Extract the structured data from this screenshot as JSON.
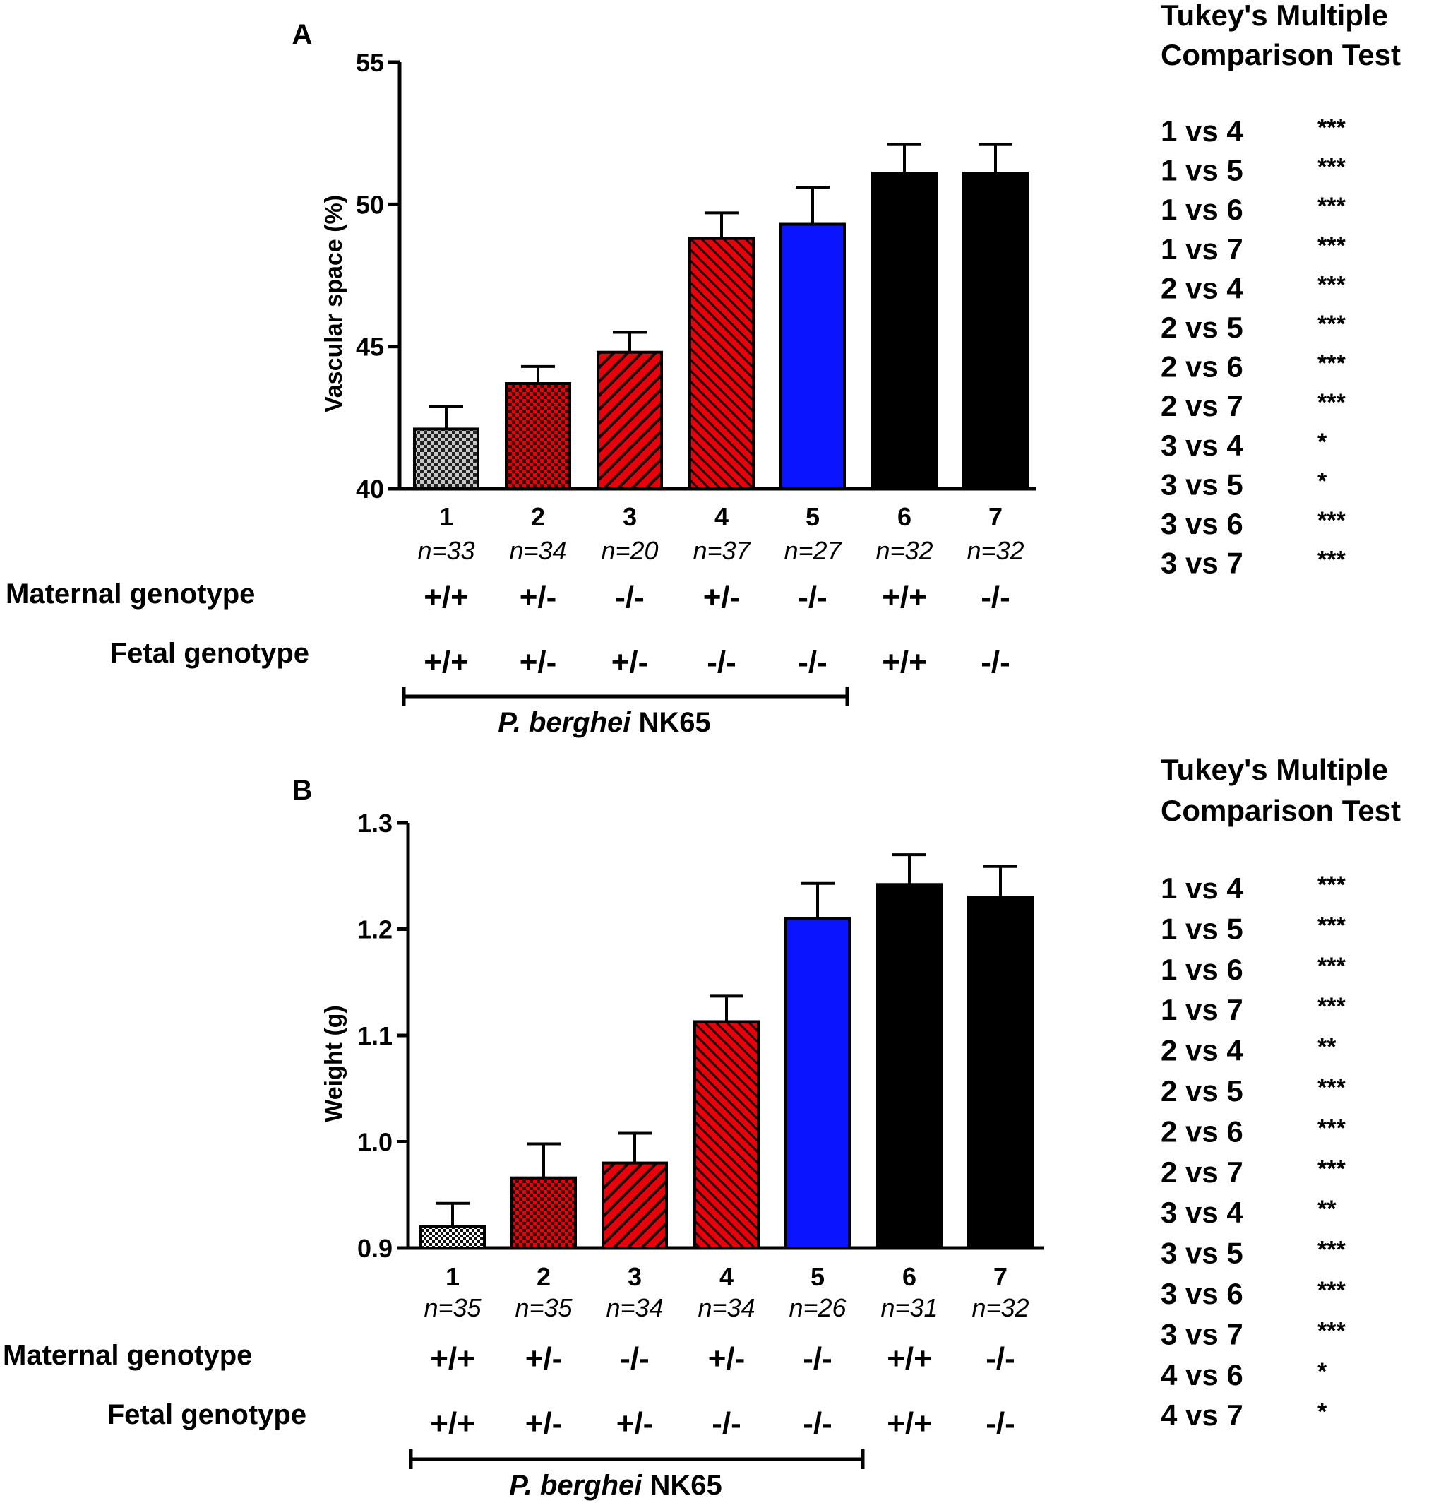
{
  "chart_data": [
    {
      "type": "bar",
      "panel_label": "A",
      "title": "",
      "xlabel": "",
      "ylabel": "Vascular space (%)",
      "ylim": [
        40,
        55
      ],
      "yticks": [
        "40",
        "45",
        "50",
        "55"
      ],
      "categories": [
        "1",
        "2",
        "3",
        "4",
        "5",
        "6",
        "7"
      ],
      "n_labels": [
        "n=33",
        "n=34",
        "n=20",
        "n=37",
        "n=27",
        "n=32",
        "n=32"
      ],
      "values": [
        42.1,
        43.7,
        44.8,
        48.8,
        49.3,
        51.1,
        51.1
      ],
      "errors": [
        0.8,
        0.6,
        0.7,
        0.9,
        1.3,
        1.0,
        1.0
      ],
      "patterns": [
        "checker-gray",
        "checker-red",
        "hatch-red",
        "hatch-red-dense",
        "solid-blue",
        "solid-black",
        "solid-black"
      ],
      "maternal_label": "Maternal genotype",
      "maternal": [
        "+/+",
        "+/-",
        "-/-",
        "+/-",
        "-/-",
        "+/+",
        "-/-"
      ],
      "fetal_label": "Fetal genotype",
      "fetal": [
        "+/+",
        "+/-",
        "+/-",
        "-/-",
        "-/-",
        "+/+",
        "-/-"
      ],
      "infection_italic": "P. berghei",
      "infection_rest": "NK65",
      "infection_span": [
        1,
        5
      ],
      "tukey_title_1": "Tukey's Multiple",
      "tukey_title_2": "Comparison Test",
      "tukey": [
        {
          "pair": "1 vs 4",
          "sig": "***"
        },
        {
          "pair": "1 vs 5",
          "sig": "***"
        },
        {
          "pair": "1 vs 6",
          "sig": "***"
        },
        {
          "pair": "1 vs 7",
          "sig": "***"
        },
        {
          "pair": "2 vs 4",
          "sig": "***"
        },
        {
          "pair": "2 vs 5",
          "sig": "***"
        },
        {
          "pair": "2 vs 6",
          "sig": "***"
        },
        {
          "pair": "2 vs 7",
          "sig": "***"
        },
        {
          "pair": "3 vs 4",
          "sig": "*"
        },
        {
          "pair": "3 vs 5",
          "sig": "*"
        },
        {
          "pair": "3 vs 6",
          "sig": "***"
        },
        {
          "pair": "3 vs 7",
          "sig": "***"
        }
      ]
    },
    {
      "type": "bar",
      "panel_label": "B",
      "title": "",
      "xlabel": "",
      "ylabel": "Weight (g)",
      "ylim": [
        0.9,
        1.3
      ],
      "yticks": [
        "0.9",
        "1.0",
        "1.1",
        "1.2",
        "1.3"
      ],
      "categories": [
        "1",
        "2",
        "3",
        "4",
        "5",
        "6",
        "7"
      ],
      "n_labels": [
        "n=35",
        "n=35",
        "n=34",
        "n=34",
        "n=26",
        "n=31",
        "n=32"
      ],
      "values": [
        0.92,
        0.966,
        0.98,
        1.113,
        1.21,
        1.242,
        1.23
      ],
      "errors": [
        0.022,
        0.032,
        0.028,
        0.024,
        0.033,
        0.028,
        0.029
      ],
      "patterns": [
        "checker-gray-fine",
        "checker-red",
        "hatch-red",
        "hatch-red-dense",
        "solid-blue",
        "solid-black",
        "solid-black"
      ],
      "maternal_label": "Maternal genotype",
      "maternal": [
        "+/+",
        "+/-",
        "-/-",
        "+/-",
        "-/-",
        "+/+",
        "-/-"
      ],
      "fetal_label": "Fetal genotype",
      "fetal": [
        "+/+",
        "+/-",
        "+/-",
        "-/-",
        "-/-",
        "+/+",
        "-/-"
      ],
      "infection_italic": "P. berghei",
      "infection_rest": "NK65",
      "infection_span": [
        1,
        5
      ],
      "tukey_title_1": "Tukey's Multiple",
      "tukey_title_2": "Comparison Test",
      "tukey": [
        {
          "pair": "1 vs 4",
          "sig": "***"
        },
        {
          "pair": "1 vs 5",
          "sig": "***"
        },
        {
          "pair": "1 vs 6",
          "sig": "***"
        },
        {
          "pair": "1 vs 7",
          "sig": "***"
        },
        {
          "pair": "2 vs 4",
          "sig": "**"
        },
        {
          "pair": "2 vs 5",
          "sig": "***"
        },
        {
          "pair": "2 vs 6",
          "sig": "***"
        },
        {
          "pair": "2 vs 7",
          "sig": "***"
        },
        {
          "pair": "3 vs 4",
          "sig": "**"
        },
        {
          "pair": "3 vs 5",
          "sig": "***"
        },
        {
          "pair": "3 vs 6",
          "sig": "***"
        },
        {
          "pair": "3 vs 7",
          "sig": "***"
        },
        {
          "pair": "4 vs 6",
          "sig": "*"
        },
        {
          "pair": "4 vs 7",
          "sig": "*"
        }
      ]
    }
  ],
  "colors": {
    "red": "#e8000b",
    "blue": "#0a14ff",
    "black": "#000000",
    "gray": "#c8c8c8",
    "white": "#ffffff"
  }
}
